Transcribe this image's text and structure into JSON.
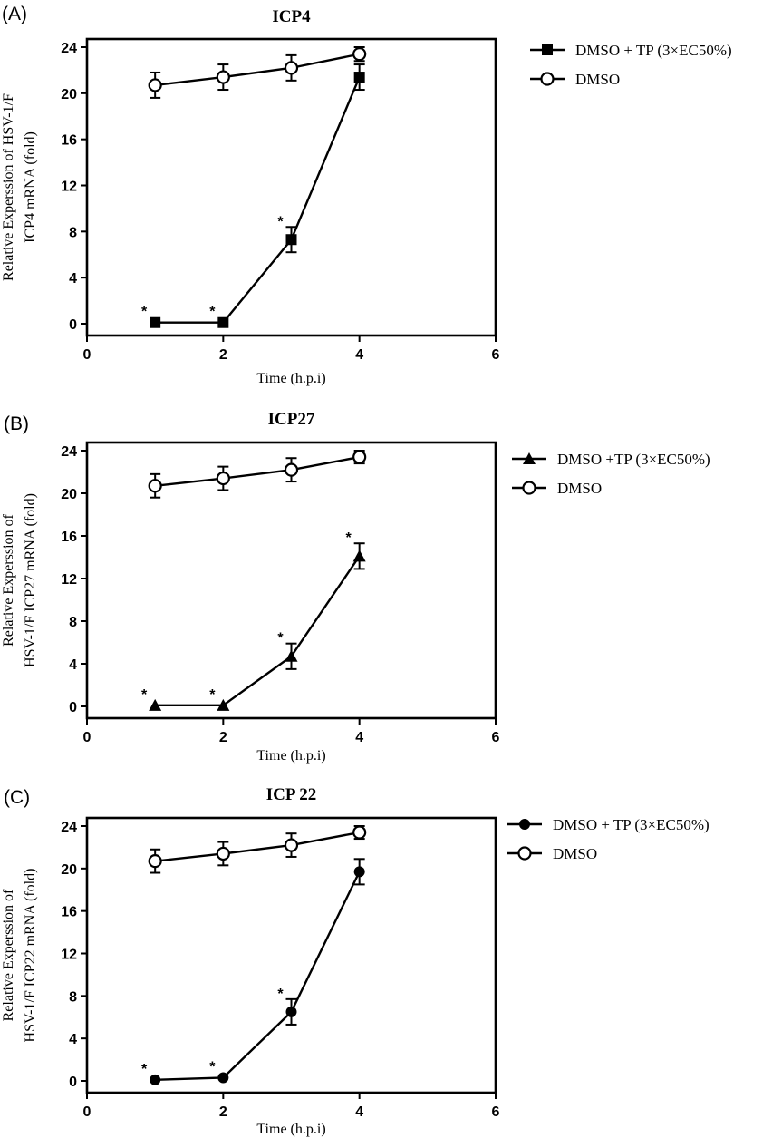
{
  "chart_data": [
    {
      "type": "line",
      "panel_label": "(A)",
      "title": "ICP4",
      "xlabel": "Time (h.p.i)",
      "ylabel_lines": [
        "Relative Experssion of HSV-1/F",
        "ICP4 mRNA (fold)"
      ],
      "xlim": [
        0,
        6
      ],
      "ylim": [
        0,
        24
      ],
      "xticks": [
        "0",
        "2",
        "4",
        "6"
      ],
      "yticks": [
        "0",
        "4",
        "8",
        "12",
        "16",
        "20",
        "24"
      ],
      "legend_position": "right",
      "series": [
        {
          "name": "DMSO + TP (3×EC50%)",
          "marker": "square",
          "x": [
            1,
            2,
            3,
            4
          ],
          "y": [
            0.1,
            0.1,
            7.3,
            21.4
          ],
          "err": [
            0,
            0,
            1.1,
            1.1
          ],
          "stars": [
            "*",
            "*",
            "*",
            ""
          ]
        },
        {
          "name": "DMSO",
          "marker": "circle-open",
          "x": [
            1,
            2,
            3,
            4
          ],
          "y": [
            20.7,
            21.4,
            22.2,
            23.4
          ],
          "err": [
            1.1,
            1.1,
            1.1,
            0.6
          ],
          "stars": [
            "",
            "",
            "",
            ""
          ]
        }
      ]
    },
    {
      "type": "line",
      "panel_label": "(B)",
      "title": "ICP27",
      "xlabel": "Time (h.p.i)",
      "ylabel_lines": [
        "Relative Experssion of",
        "HSV-1/F ICP27 mRNA (fold)"
      ],
      "xlim": [
        0,
        6
      ],
      "ylim": [
        0,
        24
      ],
      "xticks": [
        "0",
        "2",
        "4",
        "6"
      ],
      "yticks": [
        "0",
        "4",
        "8",
        "12",
        "16",
        "20",
        "24"
      ],
      "legend_position": "right",
      "series": [
        {
          "name": "DMSO +TP (3×EC50%)",
          "marker": "triangle",
          "x": [
            1,
            2,
            3,
            4
          ],
          "y": [
            0.1,
            0.1,
            4.7,
            14.1
          ],
          "err": [
            0,
            0,
            1.2,
            1.2
          ],
          "stars": [
            "*",
            "*",
            "*",
            "*"
          ]
        },
        {
          "name": "DMSO",
          "marker": "circle-open",
          "x": [
            1,
            2,
            3,
            4
          ],
          "y": [
            20.7,
            21.4,
            22.2,
            23.4
          ],
          "err": [
            1.1,
            1.1,
            1.1,
            0.6
          ],
          "stars": [
            "",
            "",
            "",
            ""
          ]
        }
      ]
    },
    {
      "type": "line",
      "panel_label": "(C)",
      "title": "ICP 22",
      "xlabel": "Time (h.p.i)",
      "ylabel_lines": [
        "Relative Experssion of",
        "HSV-1/F ICP22 mRNA (fold)"
      ],
      "xlim": [
        0,
        6
      ],
      "ylim": [
        0,
        24
      ],
      "xticks": [
        "0",
        "2",
        "4",
        "6"
      ],
      "yticks": [
        "0",
        "4",
        "8",
        "12",
        "16",
        "20",
        "24"
      ],
      "legend_position": "right",
      "series": [
        {
          "name": "DMSO + TP (3×EC50%)",
          "marker": "circle-filled",
          "x": [
            1,
            2,
            3,
            4
          ],
          "y": [
            0.1,
            0.3,
            6.5,
            19.7
          ],
          "err": [
            0,
            0,
            1.2,
            1.2
          ],
          "stars": [
            "*",
            "*",
            "*",
            ""
          ]
        },
        {
          "name": "DMSO",
          "marker": "circle-open",
          "x": [
            1,
            2,
            3,
            4
          ],
          "y": [
            20.7,
            21.4,
            22.2,
            23.4
          ],
          "err": [
            1.1,
            1.1,
            1.1,
            0.6
          ],
          "stars": [
            "",
            "",
            "",
            ""
          ]
        }
      ]
    }
  ]
}
